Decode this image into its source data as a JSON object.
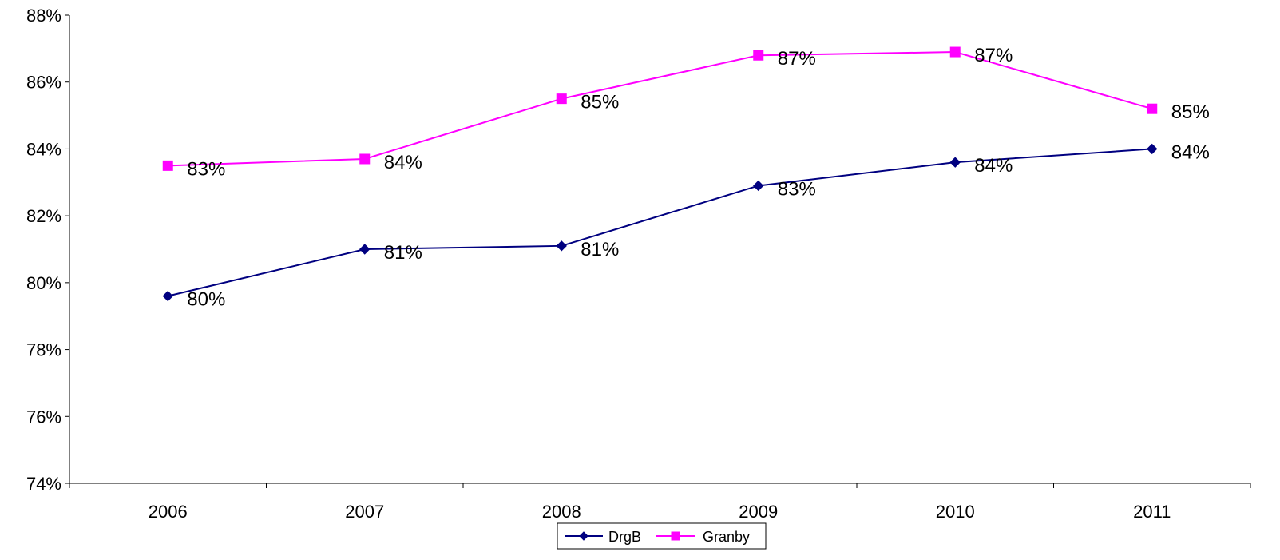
{
  "chart_data": {
    "type": "line",
    "title": "",
    "xlabel": "",
    "ylabel": "",
    "categories": [
      "2006",
      "2007",
      "2008",
      "2009",
      "2010",
      "2011"
    ],
    "ylim": [
      74,
      88
    ],
    "yticks": [
      74,
      76,
      78,
      80,
      82,
      84,
      86,
      88
    ],
    "ytick_labels": [
      "74%",
      "76%",
      "78%",
      "80%",
      "82%",
      "84%",
      "86%",
      "88%"
    ],
    "grid": false,
    "legend": "bottom-center",
    "series": [
      {
        "name": "DrgB",
        "color": "#000080",
        "marker": "diamond",
        "values": [
          79.6,
          81.0,
          81.1,
          82.9,
          83.6,
          84.0
        ],
        "labels": [
          "80%",
          "81%",
          "81%",
          "83%",
          "84%",
          "84%"
        ]
      },
      {
        "name": "Granby",
        "color": "#FF00FF",
        "marker": "square",
        "values": [
          83.5,
          83.7,
          85.5,
          86.8,
          86.9,
          85.2
        ],
        "labels": [
          "83%",
          "84%",
          "85%",
          "87%",
          "87%",
          "85%"
        ]
      }
    ]
  }
}
